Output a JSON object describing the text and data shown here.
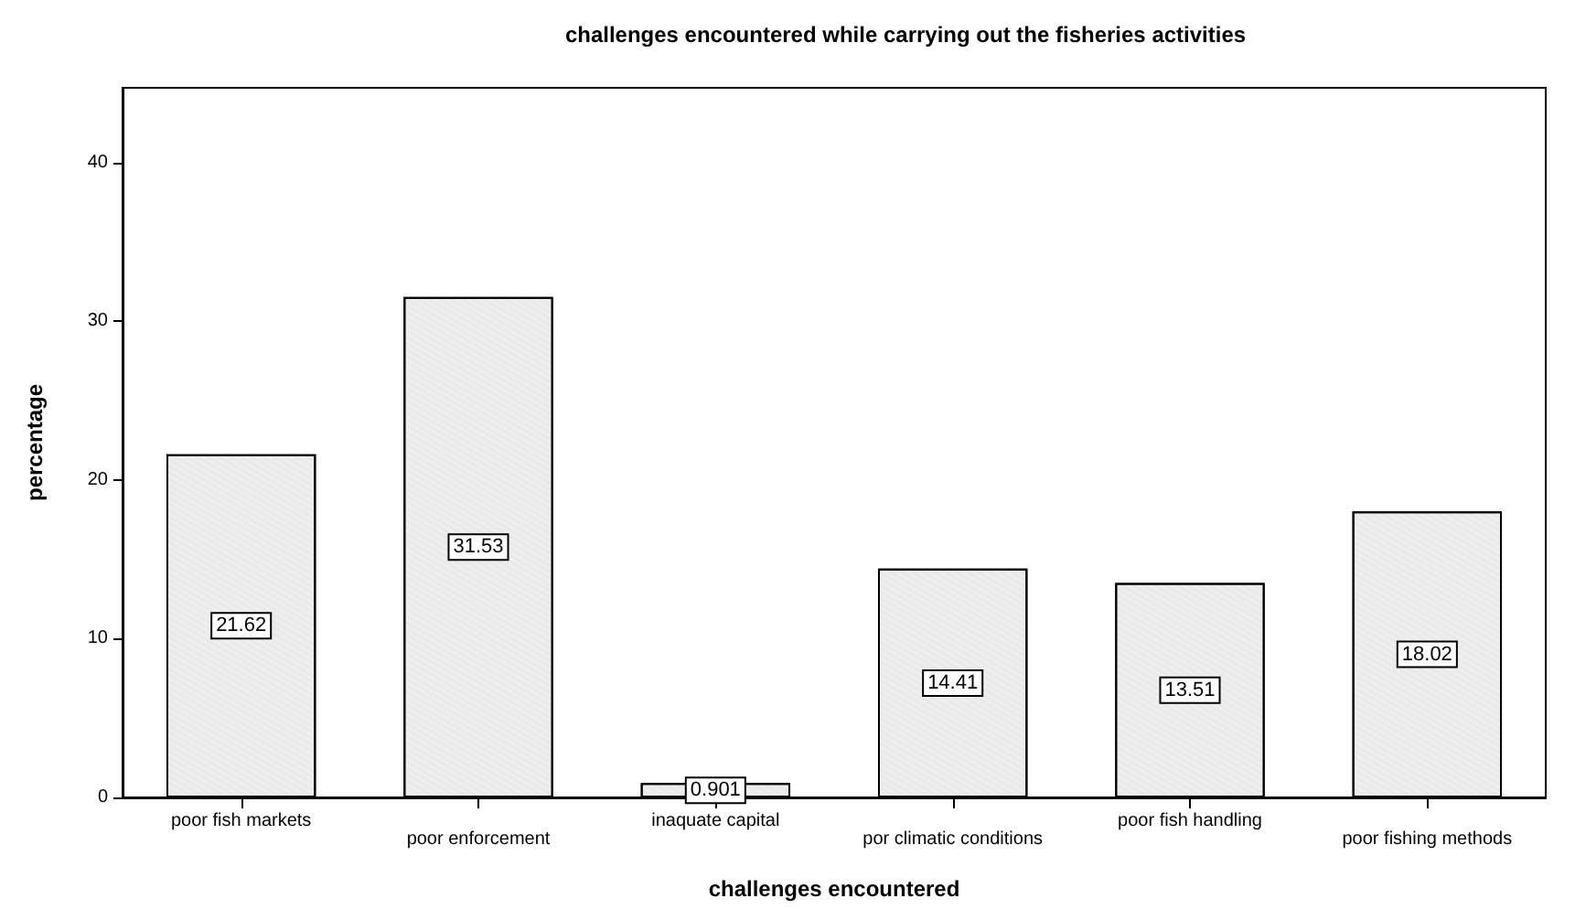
{
  "chart_data": {
    "type": "bar",
    "title": "challenges encountered while carrying out the fisheries activities",
    "xlabel": "challenges encountered",
    "ylabel": "percentage",
    "categories": [
      "poor fish markets",
      "poor enforcement",
      "inaquate capital",
      "por climatic conditions",
      "poor fish handling",
      "poor fishing methods"
    ],
    "values": [
      21.62,
      31.53,
      0.901,
      14.41,
      13.51,
      18.02
    ],
    "color": "#eeeeee",
    "ylim": [
      0,
      44.7
    ],
    "yticks": [
      0,
      10,
      20,
      30,
      40
    ],
    "grid": false,
    "data_labels": true
  }
}
